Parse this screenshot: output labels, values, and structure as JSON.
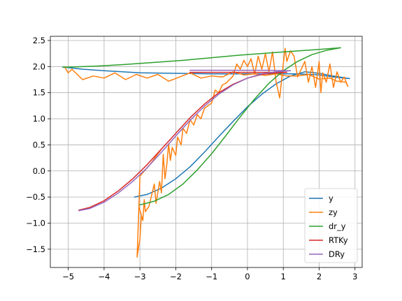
{
  "chart_data": {
    "type": "line",
    "title": "",
    "xlabel": "",
    "ylabel": "",
    "xlim": [
      -5.5,
      3.2
    ],
    "ylim": [
      -1.85,
      2.58
    ],
    "grid": true,
    "legend_position": "lower-right",
    "x_ticks": [
      {
        "value": -5,
        "label": "−5"
      },
      {
        "value": -4,
        "label": "−4"
      },
      {
        "value": -3,
        "label": "−3"
      },
      {
        "value": -2,
        "label": "−2"
      },
      {
        "value": -1,
        "label": "−1"
      },
      {
        "value": 0,
        "label": "0"
      },
      {
        "value": 1,
        "label": "1"
      },
      {
        "value": 2,
        "label": "2"
      },
      {
        "value": 3,
        "label": "3"
      }
    ],
    "y_ticks": [
      {
        "value": -1.5,
        "label": "−1.5"
      },
      {
        "value": -1.0,
        "label": "−1.0"
      },
      {
        "value": -0.5,
        "label": "−0.5"
      },
      {
        "value": 0.0,
        "label": "0.0"
      },
      {
        "value": 0.5,
        "label": "0.5"
      },
      {
        "value": 1.0,
        "label": "1.0"
      },
      {
        "value": 1.5,
        "label": "1.5"
      },
      {
        "value": 2.0,
        "label": "2.0"
      },
      {
        "value": 2.5,
        "label": "2.5"
      }
    ],
    "series": [
      {
        "name": "y",
        "color": "#1f77b4",
        "points": [
          [
            -3.15,
            -0.5
          ],
          [
            -2.8,
            -0.45
          ],
          [
            -2.4,
            -0.33
          ],
          [
            -2.0,
            -0.15
          ],
          [
            -1.6,
            0.08
          ],
          [
            -1.2,
            0.36
          ],
          [
            -0.8,
            0.66
          ],
          [
            -0.4,
            0.95
          ],
          [
            0.0,
            1.23
          ],
          [
            0.4,
            1.47
          ],
          [
            0.8,
            1.67
          ],
          [
            1.2,
            1.82
          ],
          [
            1.6,
            1.9
          ],
          [
            2.0,
            1.87
          ],
          [
            2.4,
            1.82
          ],
          [
            2.75,
            1.78
          ],
          [
            2.85,
            1.77
          ],
          [
            2.85,
            1.77
          ],
          [
            2.4,
            1.8
          ],
          [
            2.0,
            1.84
          ],
          [
            1.4,
            1.86
          ],
          [
            0.8,
            1.86
          ],
          [
            0.0,
            1.86
          ],
          [
            -1.0,
            1.86
          ],
          [
            -2.0,
            1.87
          ],
          [
            -3.0,
            1.88
          ],
          [
            -4.0,
            1.92
          ],
          [
            -4.6,
            1.95
          ],
          [
            -5.0,
            1.98
          ],
          [
            -5.15,
            1.99
          ]
        ]
      },
      {
        "name": "zy",
        "color": "#ff7f0e",
        "points": [
          [
            -2.4,
            0.42
          ],
          [
            -2.7,
            0.14
          ],
          [
            -3.0,
            -0.1
          ],
          [
            -3.08,
            -1.65
          ],
          [
            -3.0,
            -1.3
          ],
          [
            -2.96,
            -0.85
          ],
          [
            -3.02,
            -0.7
          ],
          [
            -2.92,
            -0.95
          ],
          [
            -2.88,
            -0.55
          ],
          [
            -2.85,
            -0.78
          ],
          [
            -2.75,
            -0.68
          ],
          [
            -2.6,
            -0.25
          ],
          [
            -2.55,
            -0.62
          ],
          [
            -2.45,
            -0.2
          ],
          [
            -2.4,
            -0.42
          ],
          [
            -2.35,
            0.32
          ],
          [
            -2.3,
            -0.15
          ],
          [
            -2.25,
            0.12
          ],
          [
            -2.2,
            0.52
          ],
          [
            -2.15,
            0.2
          ],
          [
            -2.1,
            0.45
          ],
          [
            -2.0,
            0.3
          ],
          [
            -1.95,
            0.65
          ],
          [
            -1.85,
            0.5
          ],
          [
            -1.8,
            0.82
          ],
          [
            -1.7,
            0.72
          ],
          [
            -1.6,
            0.98
          ],
          [
            -1.5,
            0.88
          ],
          [
            -1.4,
            1.08
          ],
          [
            -1.3,
            1.0
          ],
          [
            -1.2,
            1.2
          ],
          [
            -1.0,
            1.3
          ],
          [
            -0.9,
            1.55
          ],
          [
            -0.8,
            1.5
          ],
          [
            -0.7,
            1.65
          ],
          [
            -0.6,
            1.68
          ],
          [
            -0.5,
            1.75
          ],
          [
            -0.4,
            1.82
          ],
          [
            -0.3,
            2.05
          ],
          [
            -0.2,
            1.95
          ],
          [
            -0.1,
            2.12
          ],
          [
            0.0,
            2.0
          ],
          [
            0.1,
            2.15
          ],
          [
            0.2,
            1.85
          ],
          [
            0.3,
            2.2
          ],
          [
            0.4,
            1.95
          ],
          [
            0.5,
            2.25
          ],
          [
            0.6,
            1.9
          ],
          [
            0.7,
            2.28
          ],
          [
            0.8,
            1.7
          ],
          [
            0.9,
            1.4
          ],
          [
            1.0,
            2.05
          ],
          [
            1.05,
            2.35
          ],
          [
            1.1,
            2.1
          ],
          [
            1.2,
            2.3
          ],
          [
            1.3,
            2.2
          ],
          [
            1.4,
            1.8
          ],
          [
            1.5,
            1.95
          ],
          [
            1.6,
            2.1
          ],
          [
            1.7,
            1.7
          ],
          [
            1.8,
            2.0
          ],
          [
            1.9,
            1.6
          ],
          [
            2.0,
            2.1
          ],
          [
            2.05,
            1.5
          ],
          [
            2.1,
            1.88
          ],
          [
            2.2,
            1.7
          ],
          [
            2.3,
            2.05
          ],
          [
            2.4,
            1.6
          ],
          [
            2.5,
            1.9
          ],
          [
            2.6,
            1.7
          ],
          [
            2.7,
            1.8
          ],
          [
            2.8,
            1.62
          ],
          [
            2.75,
            1.7
          ],
          [
            2.5,
            1.72
          ],
          [
            2.3,
            1.78
          ],
          [
            2.0,
            1.76
          ],
          [
            1.7,
            1.85
          ],
          [
            1.4,
            1.82
          ],
          [
            1.1,
            1.82
          ],
          [
            0.8,
            1.86
          ],
          [
            0.5,
            1.83
          ],
          [
            0.2,
            1.86
          ],
          [
            -0.1,
            1.84
          ],
          [
            -0.4,
            1.9
          ],
          [
            -0.7,
            1.8
          ],
          [
            -1.0,
            1.82
          ],
          [
            -1.3,
            1.78
          ],
          [
            -1.6,
            1.88
          ],
          [
            -1.9,
            1.8
          ],
          [
            -2.2,
            1.72
          ],
          [
            -2.5,
            1.85
          ],
          [
            -2.8,
            1.78
          ],
          [
            -3.1,
            1.85
          ],
          [
            -3.4,
            1.75
          ],
          [
            -3.7,
            1.88
          ],
          [
            -4.0,
            1.78
          ],
          [
            -4.3,
            1.82
          ],
          [
            -4.6,
            1.75
          ],
          [
            -4.9,
            1.95
          ],
          [
            -5.0,
            1.88
          ],
          [
            -5.1,
            1.99
          ]
        ]
      },
      {
        "name": "dr_y",
        "color": "#2ca02c",
        "points": [
          [
            -3.0,
            -0.65
          ],
          [
            -2.6,
            -0.58
          ],
          [
            -2.2,
            -0.45
          ],
          [
            -1.8,
            -0.25
          ],
          [
            -1.4,
            0.02
          ],
          [
            -1.0,
            0.33
          ],
          [
            -0.6,
            0.68
          ],
          [
            -0.2,
            1.04
          ],
          [
            0.2,
            1.38
          ],
          [
            0.6,
            1.68
          ],
          [
            1.0,
            1.92
          ],
          [
            1.4,
            2.1
          ],
          [
            1.8,
            2.23
          ],
          [
            2.2,
            2.31
          ],
          [
            2.6,
            2.36
          ],
          [
            2.6,
            2.36
          ],
          [
            2.0,
            2.33
          ],
          [
            1.4,
            2.3
          ],
          [
            0.6,
            2.26
          ],
          [
            -0.2,
            2.22
          ],
          [
            -1.0,
            2.17
          ],
          [
            -1.8,
            2.12
          ],
          [
            -2.6,
            2.08
          ],
          [
            -3.4,
            2.04
          ],
          [
            -4.2,
            2.01
          ],
          [
            -5.0,
            1.99
          ],
          [
            -5.15,
            1.99
          ]
        ]
      },
      {
        "name": "RTKy",
        "color": "#d62728",
        "points": [
          [
            -4.7,
            -0.75
          ],
          [
            -4.4,
            -0.7
          ],
          [
            -4.0,
            -0.57
          ],
          [
            -3.6,
            -0.38
          ],
          [
            -3.2,
            -0.15
          ],
          [
            -2.8,
            0.12
          ],
          [
            -2.4,
            0.42
          ],
          [
            -2.0,
            0.72
          ],
          [
            -1.6,
            1.02
          ],
          [
            -1.2,
            1.28
          ],
          [
            -0.8,
            1.5
          ],
          [
            -0.4,
            1.66
          ],
          [
            0.0,
            1.78
          ],
          [
            0.4,
            1.85
          ],
          [
            0.8,
            1.88
          ],
          [
            1.1,
            1.89
          ],
          [
            1.1,
            1.89
          ],
          [
            0.5,
            1.89
          ],
          [
            -0.5,
            1.89
          ],
          [
            -1.6,
            1.89
          ]
        ]
      },
      {
        "name": "DRy",
        "color": "#9467bd",
        "points": [
          [
            -4.7,
            -0.76
          ],
          [
            -4.4,
            -0.72
          ],
          [
            -4.0,
            -0.6
          ],
          [
            -3.6,
            -0.42
          ],
          [
            -3.2,
            -0.2
          ],
          [
            -2.8,
            0.06
          ],
          [
            -2.4,
            0.36
          ],
          [
            -2.0,
            0.67
          ],
          [
            -1.6,
            0.97
          ],
          [
            -1.2,
            1.24
          ],
          [
            -0.8,
            1.47
          ],
          [
            -0.4,
            1.65
          ],
          [
            0.0,
            1.78
          ],
          [
            0.4,
            1.86
          ],
          [
            0.8,
            1.9
          ],
          [
            1.2,
            1.92
          ],
          [
            1.2,
            1.92
          ],
          [
            0.5,
            1.93
          ],
          [
            -0.5,
            1.93
          ],
          [
            -1.6,
            1.93
          ]
        ]
      }
    ]
  }
}
